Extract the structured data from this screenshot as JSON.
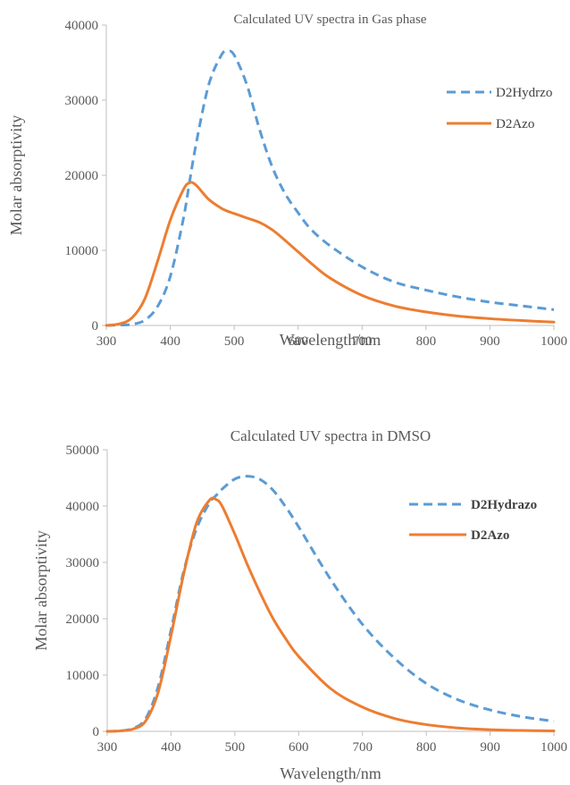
{
  "chart_data": [
    {
      "type": "line",
      "title": "Calculated UV spectra in Gas phase",
      "xlabel": "Wavelength/nm",
      "ylabel": "Molar absorptivity",
      "xlim": [
        300,
        1000
      ],
      "ylim": [
        0,
        40000
      ],
      "x_ticks": [
        300,
        400,
        500,
        600,
        700,
        800,
        900,
        1000
      ],
      "y_ticks": [
        0,
        10000,
        20000,
        30000,
        40000
      ],
      "grid": false,
      "legend_position": "top-right",
      "x": [
        300,
        320,
        340,
        360,
        380,
        400,
        420,
        430,
        440,
        460,
        480,
        490,
        500,
        520,
        540,
        560,
        580,
        600,
        620,
        650,
        700,
        750,
        800,
        850,
        900,
        950,
        1000
      ],
      "series": [
        {
          "name": "D2Hydrzo",
          "color": "#5B9BD5",
          "dash": "dashed",
          "values": [
            0,
            50,
            150,
            700,
            2500,
            6500,
            14000,
            19000,
            24000,
            32000,
            36000,
            36500,
            36000,
            32000,
            26000,
            21000,
            17500,
            15000,
            12800,
            10600,
            7800,
            5800,
            4700,
            3800,
            3100,
            2600,
            2100
          ]
        },
        {
          "name": "D2Azo",
          "color": "#ED7D31",
          "dash": "solid",
          "values": [
            0,
            200,
            1000,
            3500,
            8500,
            14000,
            18000,
            19000,
            18700,
            16800,
            15600,
            15200,
            14900,
            14300,
            13700,
            12700,
            11300,
            9800,
            8300,
            6300,
            4000,
            2600,
            1800,
            1250,
            900,
            650,
            450
          ]
        }
      ]
    },
    {
      "type": "line",
      "title": "Calculated UV spectra in DMSO",
      "xlabel": "Wavelength/nm",
      "ylabel": "Molar absorptivity",
      "xlim": [
        300,
        1000
      ],
      "ylim": [
        0,
        50000
      ],
      "x_ticks": [
        300,
        400,
        500,
        600,
        700,
        800,
        900,
        1000
      ],
      "y_ticks": [
        0,
        10000,
        20000,
        30000,
        40000,
        50000
      ],
      "grid": false,
      "legend_position": "top-right",
      "x": [
        300,
        320,
        340,
        360,
        380,
        400,
        420,
        440,
        460,
        470,
        480,
        500,
        520,
        540,
        560,
        580,
        600,
        650,
        700,
        750,
        800,
        850,
        900,
        950,
        1000
      ],
      "series": [
        {
          "name": "D2Hydrazo",
          "color": "#5B9BD5",
          "dash": "dashed",
          "values": [
            0,
            100,
            500,
            2200,
            8000,
            18000,
            28500,
            36000,
            40500,
            41800,
            43000,
            44800,
            45300,
            44700,
            42800,
            39800,
            36300,
            27000,
            19000,
            13000,
            8500,
            5600,
            3800,
            2600,
            1800
          ]
        },
        {
          "name": "D2Azo",
          "color": "#ED7D31",
          "dash": "solid",
          "values": [
            0,
            80,
            400,
            1800,
            7000,
            17000,
            28000,
            37000,
            41000,
            41200,
            40000,
            35000,
            29500,
            24500,
            20000,
            16400,
            13300,
            7600,
            4300,
            2300,
            1200,
            600,
            300,
            150,
            80
          ]
        }
      ]
    }
  ]
}
